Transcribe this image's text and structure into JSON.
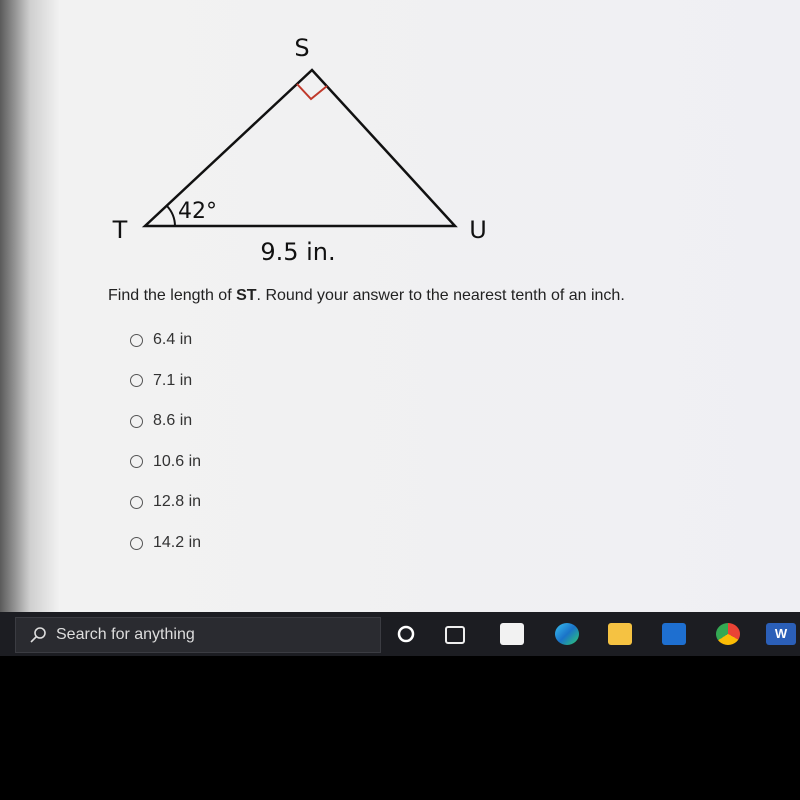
{
  "diagram": {
    "vertices": {
      "s": "S",
      "t": "T",
      "u": "U"
    },
    "angle": "42°",
    "side": "9.5 in."
  },
  "question": {
    "before": "Find the length of ",
    "bold": "ST",
    "after": ". Round your answer to the nearest tenth of an inch."
  },
  "options": [
    "6.4 in",
    "7.1 in",
    "8.6 in",
    "10.6 in",
    "12.8 in",
    "14.2 in"
  ],
  "taskbar": {
    "search": "Search for anything",
    "word_icon": "W"
  }
}
